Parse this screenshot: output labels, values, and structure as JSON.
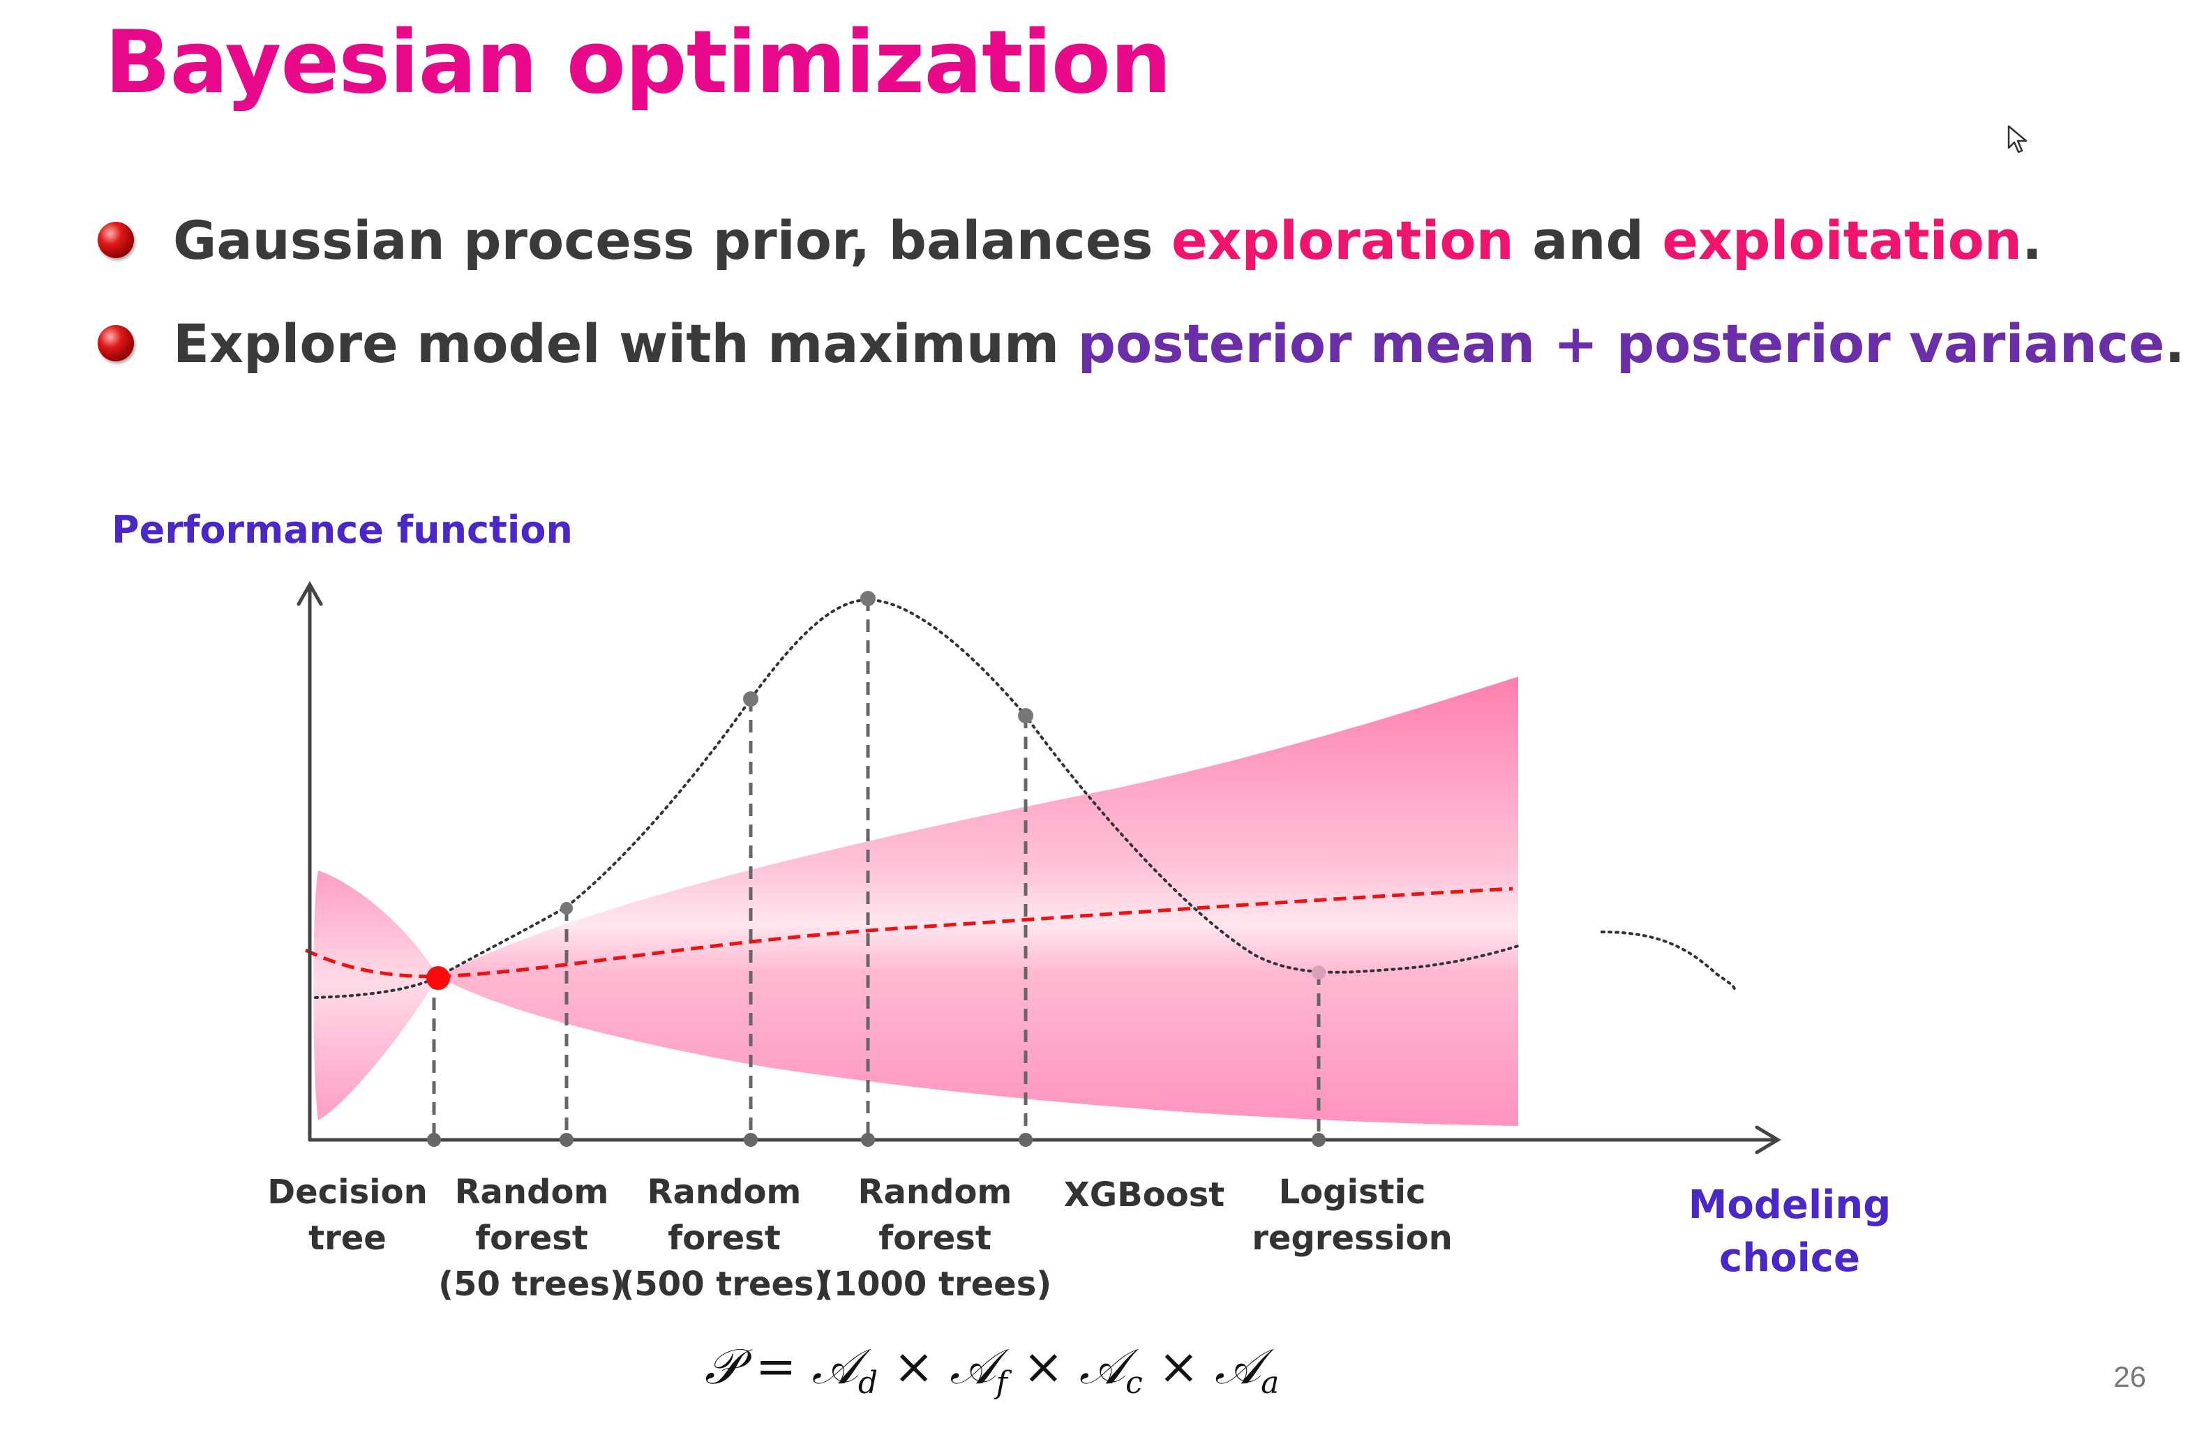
{
  "title": "Bayesian optimization",
  "bullets": [
    {
      "segments": [
        {
          "text": "Gaussian process prior, balances ",
          "style": "normal"
        },
        {
          "text": "exploration",
          "style": "pink"
        },
        {
          "text": " and ",
          "style": "normal"
        },
        {
          "text": "exploitation",
          "style": "pink"
        },
        {
          "text": ".",
          "style": "normal"
        }
      ]
    },
    {
      "segments": [
        {
          "text": "Explore model with maximum ",
          "style": "normal"
        },
        {
          "text": "posterior mean + posterior variance",
          "style": "purple"
        },
        {
          "text": ".",
          "style": "normal"
        }
      ]
    }
  ],
  "diagram": {
    "y_axis_label": "Performance function",
    "x_axis_label": [
      "Modeling",
      "choice"
    ],
    "x_categories": [
      {
        "lines": [
          "Decision",
          "tree"
        ]
      },
      {
        "lines": [
          "Random",
          "forest",
          "(50 trees)"
        ]
      },
      {
        "lines": [
          "Random",
          "forest",
          "(500 trees)"
        ]
      },
      {
        "lines": [
          "Random",
          "forest",
          "(1000 trees)"
        ]
      },
      {
        "lines": [
          "XGBoost"
        ]
      },
      {
        "lines": [
          "Logistic",
          "regression"
        ]
      }
    ],
    "formula": {
      "P": "𝒫",
      "eq": " = ",
      "times": " × ",
      "A": "𝒜",
      "subs": [
        "d",
        "f",
        "c",
        "a"
      ]
    }
  },
  "colors": {
    "title": "#e8088a",
    "pink_highlight": "#f0146e",
    "purple_highlight": "#6a2fa8",
    "label_blue": "#4b26c8",
    "band": "#ff8ab8",
    "mean": "#ee1111"
  },
  "icons": {
    "bullet": "red-sphere-bullet-icon",
    "cursor": "mouse-pointer-icon"
  },
  "page_number": "26"
}
